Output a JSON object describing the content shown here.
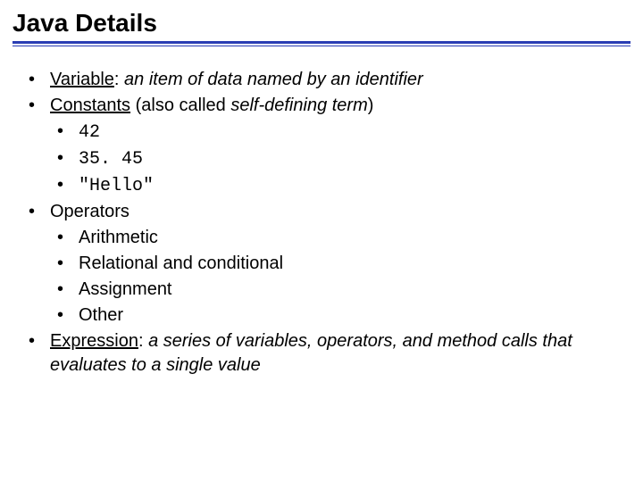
{
  "colors": {
    "rule": "#2a3db3",
    "text": "#000000",
    "background": "#ffffff"
  },
  "typography": {
    "title_fontsize": 28,
    "body_fontsize": 20,
    "title_weight": "bold",
    "mono_family": "Courier New"
  },
  "title": "Java Details",
  "b1": {
    "term": "Variable",
    "sep": ": ",
    "desc": "an item of data named by an identifier"
  },
  "b2": {
    "term": "Constants",
    "rest": " (also called ",
    "ital": "self-defining term",
    "close": ")"
  },
  "b2_items": {
    "a": "42",
    "b": "35. 45",
    "c": "\"Hello\""
  },
  "b3": {
    "text": "Operators"
  },
  "b3_items": {
    "a": "Arithmetic",
    "b": "Relational and conditional",
    "c": "Assignment",
    "d": "Other"
  },
  "b4": {
    "term": "Expression",
    "sep": ": ",
    "desc": "a series of variables, operators, and method calls that evaluates to a single value"
  }
}
